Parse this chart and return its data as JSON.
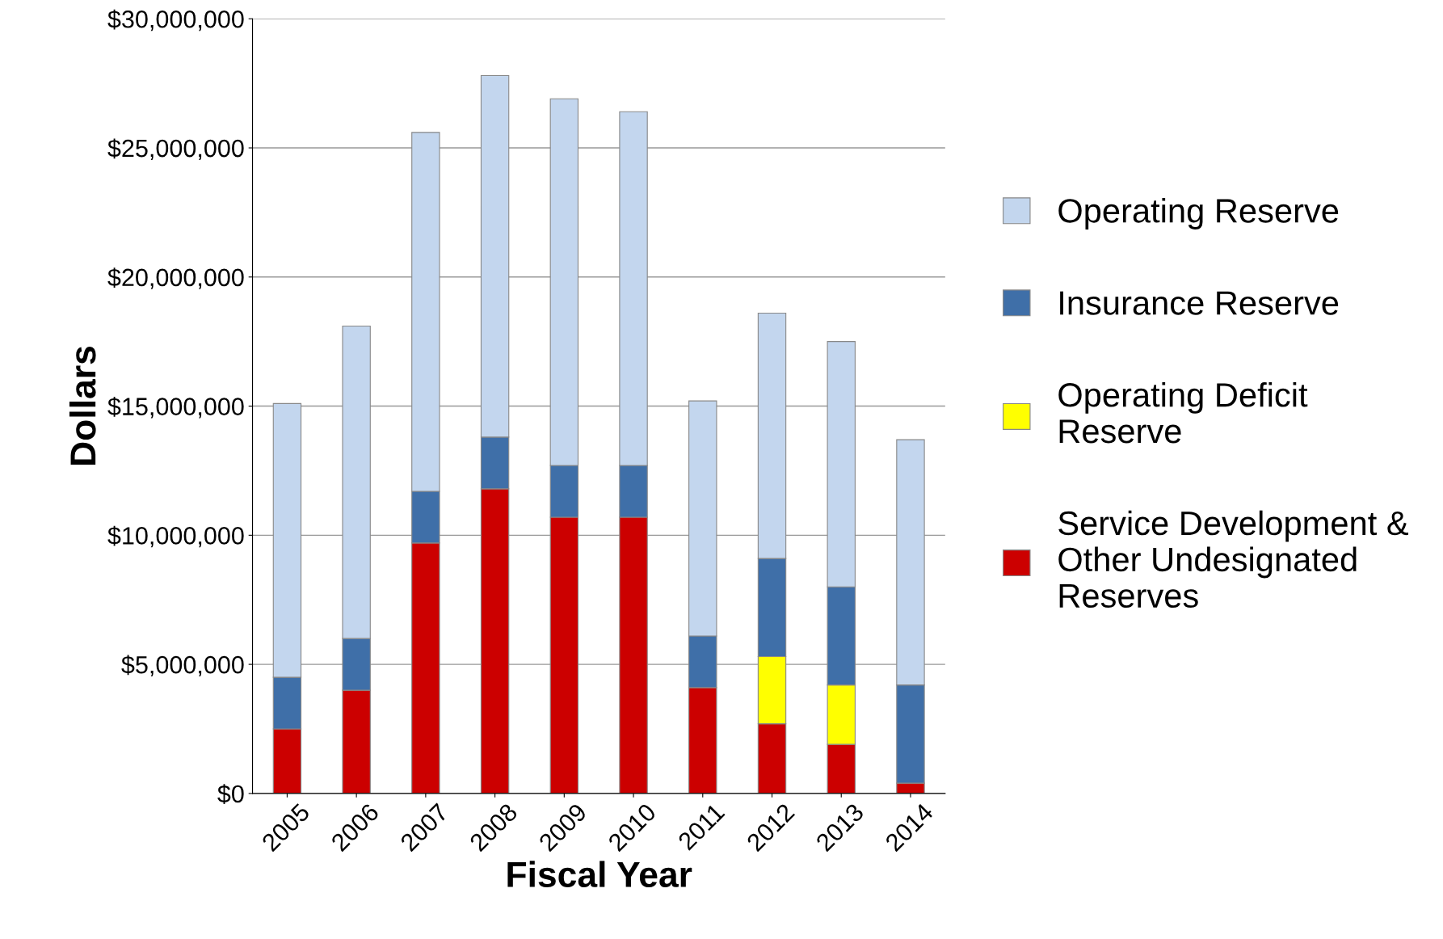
{
  "chart_data": {
    "type": "bar",
    "stacked": true,
    "xlabel": "Fiscal Year",
    "ylabel": "Dollars",
    "categories": [
      "2005",
      "2006",
      "2007",
      "2008",
      "2009",
      "2010",
      "2011",
      "2012",
      "2013",
      "2014"
    ],
    "series": [
      {
        "name": "Service Development & Other Undesignated Reserves",
        "color": "#cc0000",
        "values": [
          2500000,
          4000000,
          9700000,
          11800000,
          10700000,
          10700000,
          4100000,
          2700000,
          1900000,
          400000
        ]
      },
      {
        "name": "Operating Deficit Reserve",
        "color": "#ffff00",
        "values": [
          null,
          null,
          null,
          null,
          null,
          null,
          null,
          2600000,
          2300000,
          null
        ]
      },
      {
        "name": "Insurance Reserve",
        "color": "#3f6fa8",
        "values": [
          2000000,
          2000000,
          2000000,
          2000000,
          2000000,
          2000000,
          2000000,
          3800000,
          3800000,
          3800000
        ]
      },
      {
        "name": "Operating Reserve",
        "color": "#c3d6ee",
        "values": [
          10600000,
          12100000,
          13900000,
          14000000,
          14200000,
          13700000,
          9100000,
          9500000,
          9500000,
          9500000
        ]
      }
    ],
    "ylim": [
      0,
      30000000
    ],
    "yticks": [
      {
        "value": 0,
        "label": "$0"
      },
      {
        "value": 5000000,
        "label": "$5,000,000"
      },
      {
        "value": 10000000,
        "label": "$10,000,000"
      },
      {
        "value": 15000000,
        "label": "$15,000,000"
      },
      {
        "value": 20000000,
        "label": "$20,000,000"
      },
      {
        "value": 25000000,
        "label": "$25,000,000"
      },
      {
        "value": 30000000,
        "label": "$30,000,000"
      }
    ],
    "grid": "y",
    "legend": "right"
  }
}
